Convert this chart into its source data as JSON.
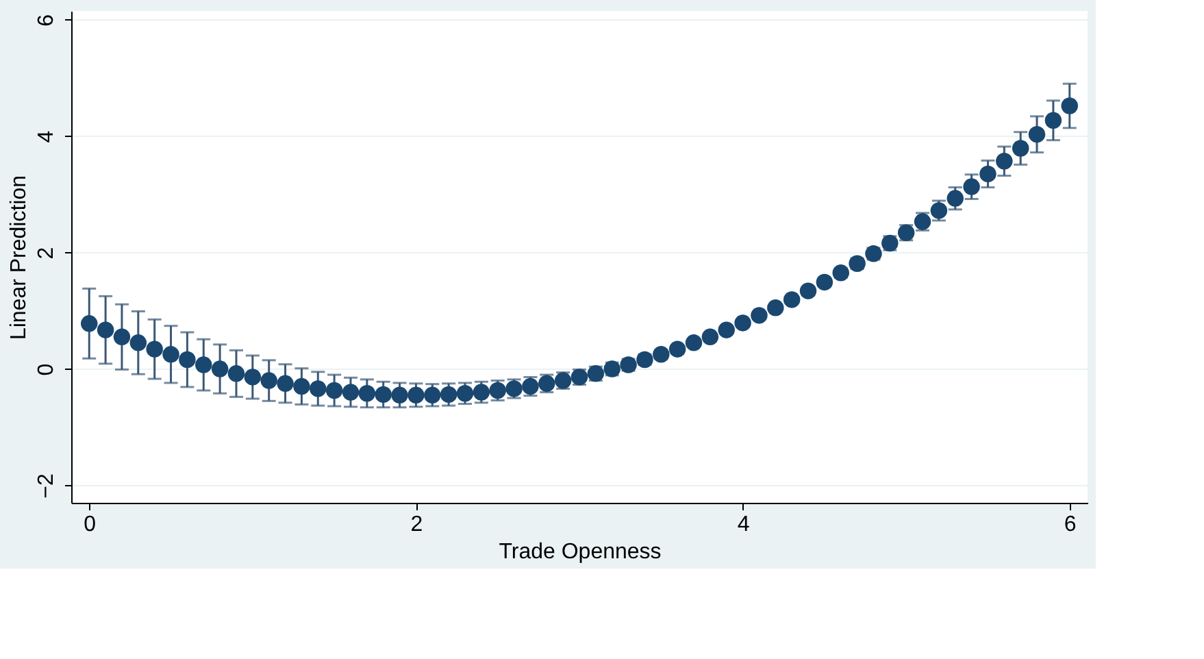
{
  "chart_data": {
    "type": "scatter",
    "xlabel": "Trade Openness",
    "ylabel": "Linear Prediction",
    "x": [
      0,
      0.1,
      0.2,
      0.3,
      0.4,
      0.5,
      0.6,
      0.7,
      0.8,
      0.9,
      1,
      1.1,
      1.2,
      1.3,
      1.4,
      1.5,
      1.6,
      1.7,
      1.8,
      1.9,
      2,
      2.1,
      2.2,
      2.3,
      2.4,
      2.5,
      2.6,
      2.7,
      2.8,
      2.9,
      3,
      3.1,
      3.2,
      3.3,
      3.4,
      3.5,
      3.6,
      3.7,
      3.8,
      3.9,
      4,
      4.1,
      4.2,
      4.3,
      4.4,
      4.5,
      4.6,
      4.7,
      4.8,
      4.9,
      5,
      5.1,
      5.2,
      5.3,
      5.4,
      5.5,
      5.6,
      5.7,
      5.8,
      5.9,
      6
    ],
    "series": [
      {
        "color": "#1a476f",
        "values": [
          0.78,
          0.67,
          0.55,
          0.45,
          0.34,
          0.25,
          0.16,
          0.07,
          0.0,
          -0.08,
          -0.14,
          -0.2,
          -0.25,
          -0.3,
          -0.34,
          -0.37,
          -0.4,
          -0.42,
          -0.44,
          -0.45,
          -0.45,
          -0.45,
          -0.44,
          -0.42,
          -0.4,
          -0.37,
          -0.34,
          -0.3,
          -0.25,
          -0.2,
          -0.14,
          -0.08,
          0.0,
          0.07,
          0.16,
          0.25,
          0.34,
          0.45,
          0.55,
          0.67,
          0.79,
          0.92,
          1.05,
          1.19,
          1.34,
          1.49,
          1.65,
          1.81,
          1.98,
          2.16,
          2.34,
          2.53,
          2.72,
          2.93,
          3.13,
          3.35,
          3.57,
          3.79,
          4.03,
          4.27,
          4.52
        ],
        "errors": [
          0.6,
          0.58,
          0.56,
          0.54,
          0.51,
          0.49,
          0.47,
          0.44,
          0.42,
          0.4,
          0.37,
          0.35,
          0.33,
          0.31,
          0.29,
          0.27,
          0.25,
          0.24,
          0.22,
          0.21,
          0.2,
          0.19,
          0.19,
          0.18,
          0.18,
          0.17,
          0.16,
          0.16,
          0.15,
          0.14,
          0.13,
          0.12,
          0.11,
          0.1,
          0.09,
          0.08,
          0.07,
          0.06,
          0.06,
          0.05,
          0.05,
          0.05,
          0.05,
          0.06,
          0.06,
          0.07,
          0.08,
          0.09,
          0.1,
          0.12,
          0.13,
          0.15,
          0.17,
          0.19,
          0.21,
          0.23,
          0.25,
          0.28,
          0.31,
          0.34,
          0.38
        ]
      }
    ],
    "xlim": [
      -0.11,
      6.11
    ],
    "ylim": [
      -2.3,
      6.15
    ],
    "xticks": [
      0,
      2,
      4,
      6
    ],
    "yticks": [
      -2,
      0,
      2,
      4,
      6
    ],
    "grid": "y",
    "marker": "circle"
  }
}
